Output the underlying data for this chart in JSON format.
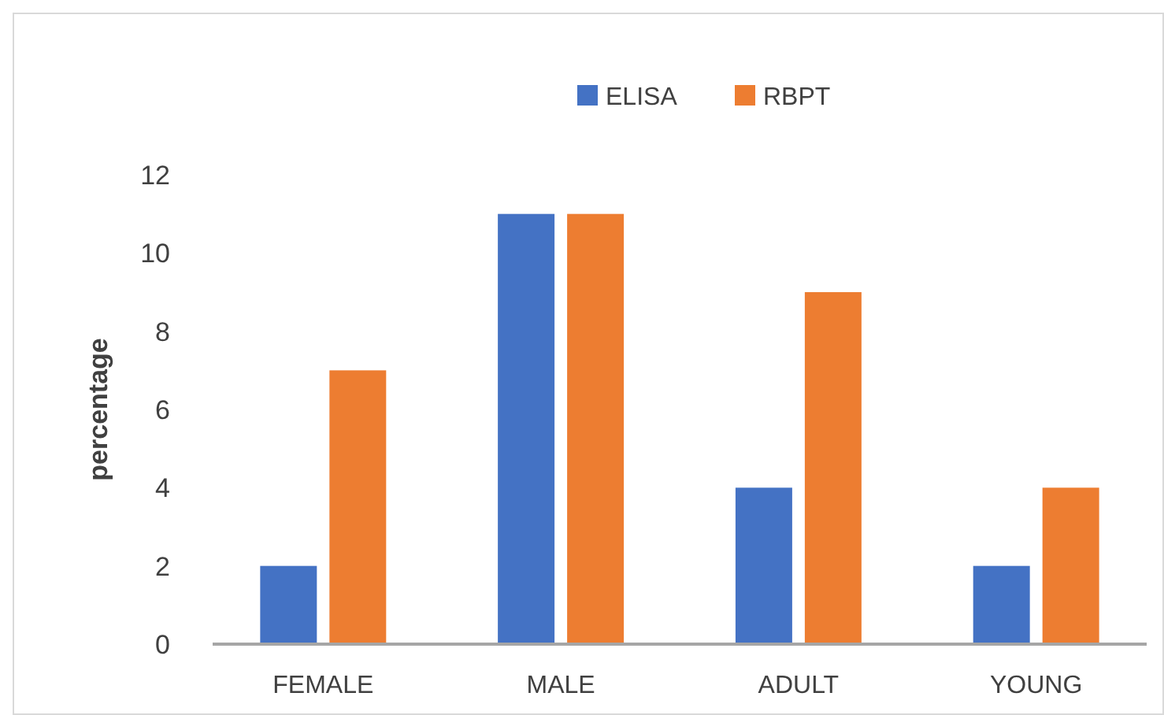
{
  "chart_data": {
    "type": "bar",
    "ylabel": "percentage",
    "categories": [
      "FEMALE",
      "MALE",
      "ADULT",
      "YOUNG"
    ],
    "series": [
      {
        "name": "ELISA",
        "color": "#4472c4",
        "values": [
          2,
          11,
          4,
          2
        ]
      },
      {
        "name": "RBPT",
        "color": "#ed7d31",
        "values": [
          7,
          11,
          9,
          4
        ]
      }
    ],
    "ylim": [
      0,
      12
    ],
    "yticks": [
      0,
      2,
      4,
      6,
      8,
      10,
      12
    ],
    "grid": false,
    "legend": "top"
  }
}
